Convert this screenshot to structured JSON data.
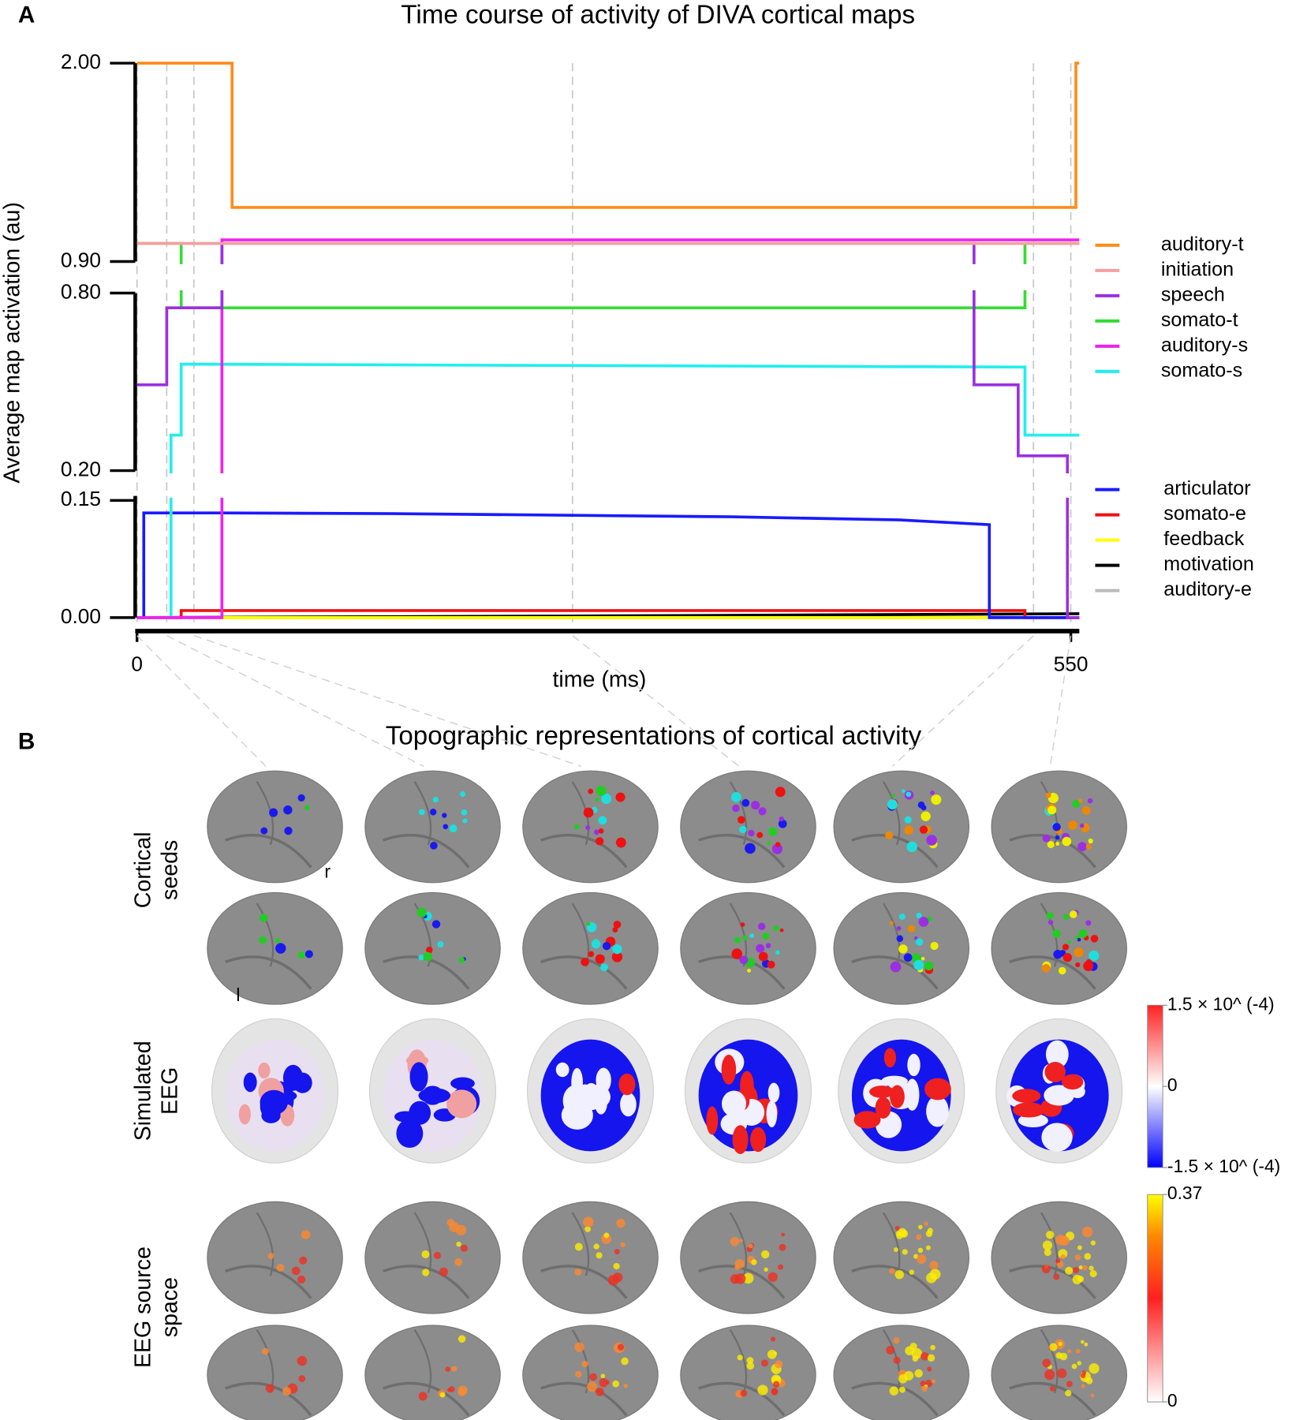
{
  "panel_labels": [
    "A",
    "B"
  ],
  "chart_data": {
    "type": "line",
    "title": "Time course of activity of DIVA cortical maps",
    "x_label": "time (ms)",
    "y_label": "Average map activation (au)",
    "xlim": [
      0,
      555
    ],
    "xticks": [
      0,
      550
    ],
    "vlines": [
      0,
      17.5,
      33.5,
      256.5,
      528,
      550
    ],
    "panels": [
      {
        "ylim": [
          0.9,
          2.0
        ],
        "yticks": [
          {
            "value": 2,
            "label": "2.00"
          },
          {
            "value": 0.9,
            "label": "0.90"
          }
        ]
      },
      {
        "ylim": [
          0.2,
          0.8
        ],
        "yticks": [
          {
            "value": 0.8,
            "label": "0.80"
          },
          {
            "value": 0.2,
            "label": "0.20"
          }
        ]
      },
      {
        "ylim": [
          0,
          0.15
        ],
        "yticks": [
          {
            "value": 0.15,
            "label": "0.15"
          },
          {
            "value": 0,
            "label": "0.00"
          }
        ]
      }
    ],
    "series": [
      {
        "name": "auditory-t",
        "color": "#ff8c1a",
        "x": [
          0,
          56,
          56,
          553,
          553,
          555
        ],
        "values": [
          2.0,
          2.0,
          1.2,
          1.2,
          2.0,
          2.0
        ]
      },
      {
        "name": "initiation",
        "color": "#f4a0a0",
        "x": [
          0,
          555
        ],
        "values": [
          1.0,
          1.0
        ]
      },
      {
        "name": "speech",
        "color": "#9b30e0",
        "x": [
          0,
          17.5,
          17.5,
          50,
          50,
          493,
          493,
          519,
          519,
          548,
          548,
          555
        ],
        "values": [
          0.49,
          0.49,
          0.75,
          0.75,
          1.0,
          1.0,
          0.49,
          0.49,
          0.25,
          0.25,
          0,
          0
        ]
      },
      {
        "name": "somato-t",
        "color": "#33dd33",
        "x": [
          0,
          26,
          26,
          523,
          523,
          555
        ],
        "values": [
          1.0,
          1.0,
          0.75,
          0.75,
          1.0,
          1.0
        ]
      },
      {
        "name": "auditory-s",
        "color": "#ee22ee",
        "x": [
          0,
          50,
          50,
          555
        ],
        "values": [
          0,
          0,
          1.02,
          1.02
        ]
      },
      {
        "name": "somato-s",
        "color": "#22eeee",
        "x": [
          0,
          20,
          20,
          26,
          26,
          256,
          523,
          523,
          555
        ],
        "values": [
          0,
          0,
          0.32,
          0.32,
          0.56,
          0.555,
          0.55,
          0.32,
          0.32
        ]
      },
      {
        "name": "articulator",
        "color": "#1a1aff",
        "x": [
          0,
          4,
          4,
          50,
          150,
          256,
          350,
          450,
          502,
          502,
          555
        ],
        "values": [
          0,
          0,
          0.134,
          0.134,
          0.133,
          0.131,
          0.129,
          0.125,
          0.119,
          0,
          0
        ]
      },
      {
        "name": "somato-e",
        "color": "#ee1111",
        "x": [
          0,
          26,
          26,
          523,
          523,
          555
        ],
        "values": [
          0,
          0,
          0.009,
          0.009,
          0,
          0
        ]
      },
      {
        "name": "feedback",
        "color": "#ffff00",
        "x": [
          0,
          555
        ],
        "values": [
          0,
          0
        ]
      },
      {
        "name": "motivation",
        "color": "#000000",
        "x": [
          0,
          256,
          555
        ],
        "values": [
          0,
          0.002,
          0.005
        ]
      },
      {
        "name": "auditory-e",
        "color": "#bbbbbb",
        "x": [
          0,
          555
        ],
        "values": [
          0,
          0
        ]
      }
    ]
  },
  "panel_b": {
    "title": "Topographic representations of cortical activity",
    "row_labels": [
      [
        "Cortical",
        "seeds"
      ],
      [
        "Simulated",
        "EEG"
      ],
      [
        "EEG source",
        "space"
      ]
    ],
    "hemisphere_labels": [
      "r",
      "l"
    ],
    "colorbars": [
      {
        "lim": [
          -0.00015,
          0.00015
        ],
        "ticks": [
          {
            "value": 0.00015,
            "label": "1.5 × 10^ (-4)"
          },
          0,
          {
            "value": -0.00015,
            "label": "-1.5 × 10^ (-4)"
          }
        ]
      },
      {
        "lim": [
          0,
          0.37
        ],
        "ticks": [
          0.37,
          0
        ]
      }
    ]
  }
}
